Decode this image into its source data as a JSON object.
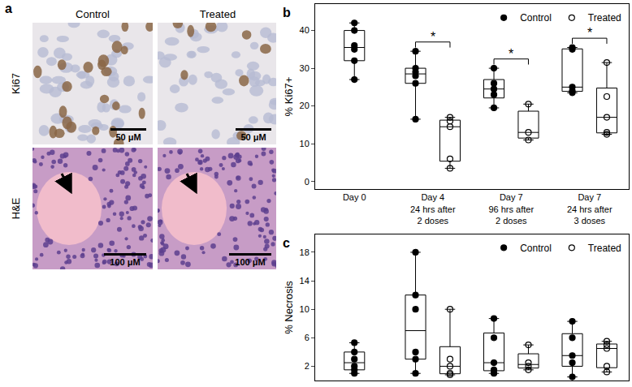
{
  "panel_a": {
    "label": "a",
    "columns": [
      "Control",
      "Treated"
    ],
    "rows": [
      {
        "label": "Ki67",
        "scale_bar": "50 μM"
      },
      {
        "label": "H&E",
        "scale_bar": "100 μM"
      }
    ]
  },
  "chart_data": [
    {
      "type": "box",
      "label": "b",
      "y_label": "% Ki67+",
      "categories": [
        "Day 0",
        "Day 4\n24 hrs after\n2 doses",
        "Day 7\n96 hrs after\n2 doses",
        "Day 7\n24 hrs after\n3 doses"
      ],
      "series": [
        {
          "name": "Control",
          "color": "#000000",
          "marker": "circle",
          "values": [
            [
              42,
              40,
              36,
              35,
              32,
              27
            ],
            [
              34.5,
              30,
              29,
              28,
              26,
              16.5
            ],
            [
              30,
              26,
              24.5,
              23,
              19.5
            ],
            [
              35.5,
              35,
              25,
              24,
              23.5
            ]
          ]
        },
        {
          "name": "Treated",
          "color": "#000000",
          "marker": "circle-open",
          "values": [
            null,
            [
              17,
              16,
              14.5,
              6,
              3.5
            ],
            [
              20.5,
              13,
              11
            ],
            [
              31.5,
              22.5,
              17,
              13,
              12.5
            ]
          ]
        }
      ],
      "ylim": [
        -2,
        47
      ],
      "yticks": [
        0,
        10,
        20,
        30,
        40
      ],
      "grid": false,
      "legend": "upper right",
      "annotations": [
        {
          "category": "Day 4\n24 hrs after\n2 doses",
          "text": "*"
        },
        {
          "category": "Day 7\n96 hrs after\n2 doses",
          "text": "*"
        },
        {
          "category": "Day 7\n24 hrs after\n3 doses",
          "text": "*"
        }
      ]
    },
    {
      "type": "box",
      "label": "c",
      "y_label": "% Necrosis",
      "categories": [
        null,
        null,
        null,
        null
      ],
      "series": [
        {
          "name": "Control",
          "color": "#000000",
          "marker": "circle",
          "values": [
            [
              5.3,
              4,
              3,
              2,
              1.5,
              1
            ],
            [
              18,
              12,
              10,
              4,
              3,
              1
            ],
            [
              8.7,
              6,
              2.5,
              1.5,
              1
            ],
            [
              8.3,
              6,
              3.5,
              2.5,
              0.5
            ]
          ]
        },
        {
          "name": "Treated",
          "color": "#000000",
          "marker": "circle-open",
          "values": [
            null,
            [
              10,
              3,
              2,
              1,
              0.8
            ],
            [
              5,
              2.5,
              2,
              1.5
            ],
            [
              5.5,
              5,
              4.5,
              2,
              1.2
            ]
          ]
        }
      ],
      "ylim": [
        0,
        20.5
      ],
      "yticks": [
        2,
        6,
        10,
        14,
        18
      ],
      "grid": false,
      "legend": "upper right",
      "tick_labels": "y"
    }
  ]
}
